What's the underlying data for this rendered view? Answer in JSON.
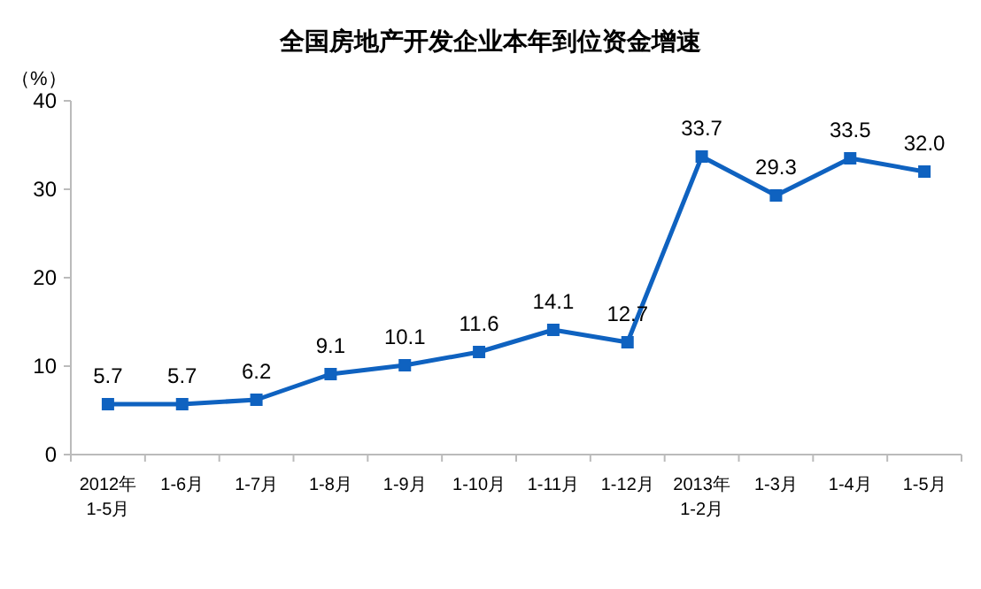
{
  "chart_data": {
    "type": "line",
    "title": "全国房地产开发企业本年到位资金增速",
    "ylabel": "（%）",
    "categories": [
      "2012年\n1-5月",
      "1-6月",
      "1-7月",
      "1-8月",
      "1-9月",
      "1-10月",
      "1-11月",
      "1-12月",
      "2013年\n1-2月",
      "1-3月",
      "1-4月",
      "1-5月"
    ],
    "series": [
      {
        "color": "#0f62c0",
        "values": [
          5.7,
          5.7,
          6.2,
          9.1,
          10.1,
          11.6,
          14.1,
          12.7,
          33.7,
          29.3,
          33.5,
          32.0
        ],
        "value_labels": [
          "5.7",
          "5.7",
          "6.2",
          "9.1",
          "10.1",
          "11.6",
          "14.1",
          "12.7",
          "33.7",
          "29.3",
          "33.5",
          "32.0"
        ]
      }
    ],
    "ylim": [
      0,
      40
    ],
    "yticks": [
      0,
      10,
      20,
      30,
      40
    ],
    "marker": "square",
    "grid": false
  }
}
